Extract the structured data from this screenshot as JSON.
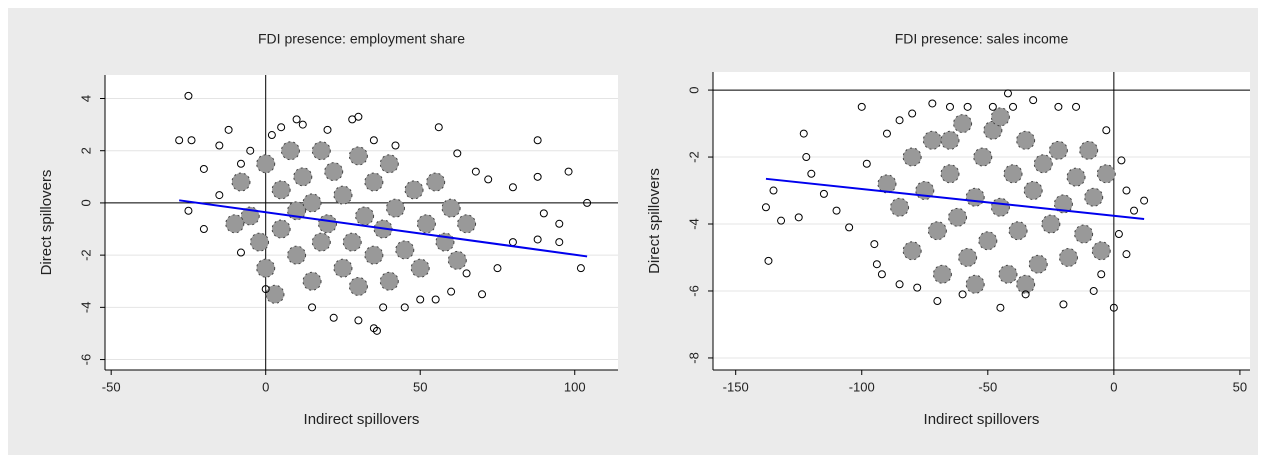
{
  "chart_data": [
    {
      "type": "scatter",
      "title": "FDI presence: employment share",
      "x_label": "Indirect spillovers",
      "y_label": "Direct spillovers",
      "xlim": [
        -52,
        114
      ],
      "ylim": [
        -6.4,
        4.9
      ],
      "xticks": [
        -50,
        0,
        50,
        100
      ],
      "yticks": [
        -6,
        -4,
        -2,
        0,
        2,
        4
      ],
      "grid": true,
      "reference_lines": {
        "x": 0,
        "y": 0
      },
      "points": {
        "color": "#000000",
        "x": [
          -25,
          -28,
          -24,
          -20,
          -15,
          -12,
          -8,
          -5,
          2,
          5,
          10,
          12,
          20,
          28,
          30,
          35,
          42,
          56,
          62,
          68,
          72,
          80,
          88,
          88,
          90,
          95,
          98,
          104,
          102,
          88,
          75,
          70,
          60,
          55,
          45,
          38,
          35,
          36,
          22,
          15,
          0,
          -8,
          -20,
          -25,
          -15,
          80,
          65,
          50,
          30,
          95
        ],
        "y": [
          4.1,
          2.4,
          2.4,
          1.3,
          2.2,
          2.8,
          1.5,
          2.0,
          2.6,
          2.9,
          3.2,
          3.0,
          2.8,
          3.2,
          3.3,
          2.4,
          2.2,
          2.9,
          1.9,
          1.2,
          0.9,
          0.6,
          2.4,
          1.0,
          -0.4,
          -0.8,
          1.2,
          0.0,
          -2.5,
          -1.4,
          -2.5,
          -3.5,
          -3.4,
          -3.7,
          -4.0,
          -4.0,
          -4.8,
          -4.9,
          -4.4,
          -4.0,
          -3.3,
          -1.9,
          -1.0,
          -0.3,
          0.3,
          -1.5,
          -2.7,
          -3.7,
          -4.5,
          -1.5
        ]
      },
      "cloud": {
        "color": "#999999",
        "x": [
          -8,
          -5,
          -2,
          0,
          0,
          5,
          5,
          8,
          10,
          10,
          12,
          15,
          15,
          18,
          18,
          20,
          22,
          25,
          25,
          28,
          30,
          30,
          32,
          35,
          35,
          38,
          40,
          40,
          42,
          45,
          48,
          50,
          52,
          55,
          58,
          60,
          62,
          65,
          -10,
          3
        ],
        "y": [
          0.8,
          -0.5,
          -1.5,
          1.5,
          -2.5,
          0.5,
          -1.0,
          2.0,
          -2.0,
          -0.3,
          1.0,
          -3.0,
          0.0,
          2.0,
          -1.5,
          -0.8,
          1.2,
          -2.5,
          0.3,
          -1.5,
          1.8,
          -3.2,
          -0.5,
          0.8,
          -2.0,
          -1.0,
          1.5,
          -3.0,
          -0.2,
          -1.8,
          0.5,
          -2.5,
          -0.8,
          0.8,
          -1.5,
          -0.2,
          -2.2,
          -0.8,
          -0.8,
          -3.5
        ]
      },
      "fit": {
        "color": "#0000ee",
        "x": [
          -28,
          104
        ],
        "y": [
          0.1,
          -2.05
        ]
      }
    },
    {
      "type": "scatter",
      "title": "FDI presence: sales income",
      "x_label": "Indirect spillovers",
      "y_label": "Direct spillovers",
      "xlim": [
        -159,
        54
      ],
      "ylim": [
        -8.36,
        0.54
      ],
      "xticks": [
        -150,
        -100,
        -50,
        0,
        50
      ],
      "yticks": [
        -8,
        -6,
        -4,
        -2,
        0
      ],
      "grid": true,
      "reference_lines": {
        "x": 0,
        "y": 0
      },
      "points": {
        "color": "#000000",
        "x": [
          -138,
          -137,
          -135,
          -132,
          -125,
          -123,
          -122,
          -120,
          -115,
          -110,
          -105,
          -100,
          -98,
          -95,
          -92,
          -90,
          -85,
          -80,
          -72,
          -65,
          -58,
          -48,
          -42,
          -40,
          -32,
          -22,
          -15,
          -3,
          3,
          5,
          8,
          12,
          5,
          0,
          -8,
          -20,
          -35,
          -45,
          -60,
          -70,
          -78,
          -85,
          -94,
          2,
          -5
        ],
        "y": [
          -3.5,
          -5.1,
          -3.0,
          -3.9,
          -3.8,
          -1.3,
          -2.0,
          -2.5,
          -3.1,
          -3.6,
          -4.1,
          -0.5,
          -2.2,
          -4.6,
          -5.5,
          -1.3,
          -0.9,
          -0.7,
          -0.4,
          -0.5,
          -0.5,
          -0.5,
          -0.1,
          -0.5,
          -0.3,
          -0.5,
          -0.5,
          -1.2,
          -2.1,
          -3.0,
          -3.6,
          -3.3,
          -4.9,
          -6.5,
          -6.0,
          -6.4,
          -6.1,
          -6.5,
          -6.1,
          -6.3,
          -5.9,
          -5.8,
          -5.2,
          -4.3,
          -5.5
        ]
      },
      "cloud": {
        "color": "#999999",
        "x": [
          -85,
          -80,
          -80,
          -75,
          -72,
          -70,
          -68,
          -65,
          -62,
          -60,
          -58,
          -55,
          -52,
          -50,
          -48,
          -45,
          -42,
          -40,
          -38,
          -35,
          -32,
          -30,
          -28,
          -25,
          -22,
          -20,
          -18,
          -15,
          -12,
          -10,
          -8,
          -5,
          -3,
          -90,
          -55,
          -65,
          -35,
          -45
        ],
        "y": [
          -3.5,
          -2.0,
          -4.8,
          -3.0,
          -1.5,
          -4.2,
          -5.5,
          -2.5,
          -3.8,
          -1.0,
          -5.0,
          -3.2,
          -2.0,
          -4.5,
          -1.2,
          -3.5,
          -5.5,
          -2.5,
          -4.2,
          -1.5,
          -3.0,
          -5.2,
          -2.2,
          -4.0,
          -1.8,
          -3.4,
          -5.0,
          -2.6,
          -4.3,
          -1.8,
          -3.2,
          -4.8,
          -2.5,
          -2.8,
          -5.8,
          -1.5,
          -5.8,
          -0.8
        ]
      },
      "fit": {
        "color": "#0000ee",
        "x": [
          -138,
          12
        ],
        "y": [
          -2.65,
          -3.85
        ]
      }
    }
  ]
}
